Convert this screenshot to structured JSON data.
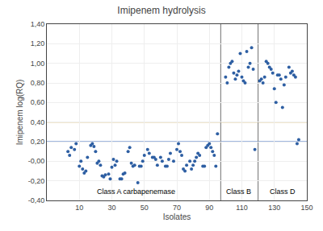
{
  "chart_data": {
    "type": "scatter",
    "title": "Imipenem hydrolysis",
    "xlabel": "Isolates",
    "ylabel": "Imipenem log(RQ)",
    "xlim": [
      -10,
      150
    ],
    "ylim": [
      -0.4,
      1.4
    ],
    "xticks": [
      10,
      30,
      50,
      70,
      90,
      110,
      130,
      150
    ],
    "yticks": [
      {
        "value": -0.4,
        "label": "-0,40"
      },
      {
        "value": -0.2,
        "label": "-0,20"
      },
      {
        "value": -0.0,
        "label": "-0,00"
      },
      {
        "value": 0.2,
        "label": "0,20"
      },
      {
        "value": 0.4,
        "label": "0,40"
      },
      {
        "value": 0.6,
        "label": "0,60"
      },
      {
        "value": 0.8,
        "label": "0,80"
      },
      {
        "value": 1.0,
        "label": "1,00"
      },
      {
        "value": 1.2,
        "label": "1,20"
      },
      {
        "value": 1.4,
        "label": "1,40"
      }
    ],
    "grid": true,
    "hlines": [
      {
        "value": 0.2,
        "color": "#4472c4"
      },
      {
        "value": 0.4,
        "color": "#c8a040"
      }
    ],
    "vlines": [
      {
        "value": 97,
        "color": "#707070"
      },
      {
        "value": 120,
        "color": "#707070"
      }
    ],
    "annotations": [
      {
        "text": "Class A carbapenemase",
        "x": 45,
        "y": -0.31
      },
      {
        "text": "Class B",
        "x": 108,
        "y": -0.31
      },
      {
        "text": "Class D",
        "x": 135,
        "y": -0.31
      }
    ],
    "series": [
      {
        "color": "#2e5fa3",
        "x": [
          3,
          4,
          5,
          7,
          8,
          10,
          11,
          12,
          13,
          14,
          15,
          17,
          18,
          19,
          20,
          21,
          22,
          23,
          24,
          25,
          26,
          28,
          29,
          30,
          31,
          32,
          33,
          35,
          36,
          37,
          38,
          40,
          41,
          42,
          43,
          44,
          46,
          47,
          48,
          49,
          50,
          52,
          53,
          55,
          56,
          57,
          58,
          60,
          61,
          63,
          64,
          65,
          66,
          68,
          70,
          71,
          72,
          73,
          74,
          75,
          76,
          78,
          79,
          80,
          81,
          82,
          83,
          84,
          86,
          87,
          88,
          89,
          90,
          91,
          92,
          93,
          94,
          95
        ],
        "values": [
          0.1,
          0.06,
          0.14,
          0.12,
          0.18,
          -0.05,
          0.0,
          -0.08,
          -0.12,
          -0.1,
          0.04,
          0.16,
          0.18,
          0.15,
          0.1,
          -0.02,
          0.0,
          -0.04,
          -0.15,
          -0.16,
          -0.14,
          -0.13,
          -0.18,
          -0.06,
          0.02,
          -0.04,
          -0.0,
          -0.18,
          -0.18,
          -0.13,
          -0.12,
          0.1,
          0.14,
          -0.02,
          -0.05,
          -0.04,
          -0.22,
          -0.05,
          -0.05,
          0.0,
          0.06,
          0.12,
          0.08,
          0.04,
          0.04,
          0.02,
          -0.04,
          0.04,
          0.0,
          -0.05,
          -0.05,
          0.02,
          0.08,
          0.0,
          0.12,
          0.18,
          0.1,
          0.06,
          -0.08,
          -0.1,
          -0.04,
          0.0,
          -0.08,
          -0.04,
          0.0,
          0.04,
          0.08,
          0.06,
          -0.05,
          -0.05,
          0.14,
          0.16,
          0.18,
          0.14,
          0.1,
          0.06,
          -0.05,
          0.28
        ]
      },
      {
        "color": "#2e5fa3",
        "x": [
          100,
          101,
          102,
          103,
          104,
          105,
          106,
          107,
          108,
          109,
          110,
          111,
          112,
          113,
          114,
          115,
          116,
          117,
          118
        ],
        "values": [
          0.86,
          0.8,
          0.96,
          1.0,
          1.02,
          0.9,
          0.84,
          0.88,
          0.92,
          1.1,
          0.86,
          0.82,
          0.8,
          1.12,
          0.96,
          1.0,
          1.16,
          0.94,
          0.12
        ]
      },
      {
        "color": "#2e5fa3",
        "x": [
          121,
          122,
          123,
          124,
          125,
          126,
          127,
          128,
          129,
          130,
          131,
          132,
          133,
          134,
          135,
          136,
          137,
          139,
          140,
          141,
          142,
          143,
          144,
          145
        ],
        "values": [
          0.82,
          0.84,
          0.8,
          0.86,
          1.02,
          1.0,
          0.96,
          0.94,
          0.9,
          0.74,
          0.6,
          0.88,
          0.88,
          0.84,
          0.55,
          0.78,
          0.86,
          0.96,
          0.9,
          0.92,
          0.88,
          0.86,
          0.18,
          0.22
        ]
      }
    ]
  }
}
